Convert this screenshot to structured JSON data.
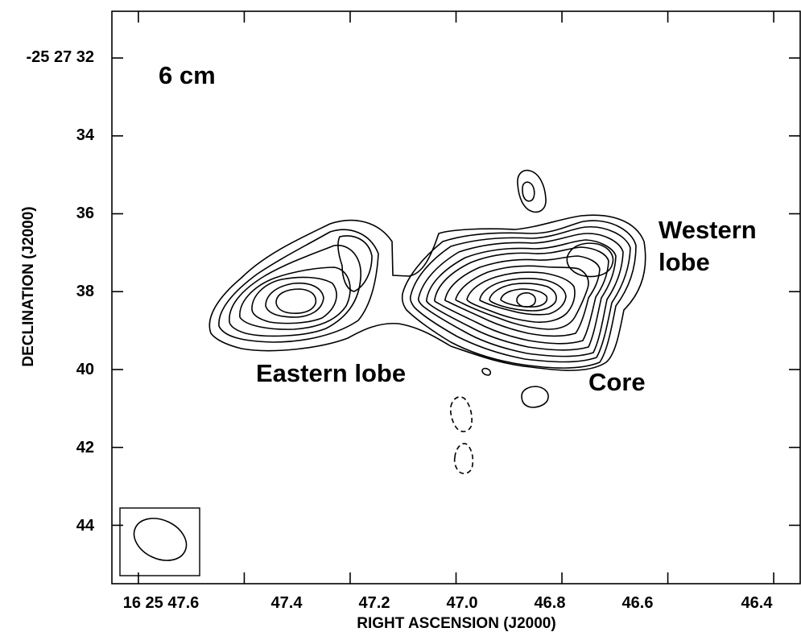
{
  "chart_data": {
    "type": "contour",
    "band_label": "6 cm",
    "xlabel": "RIGHT ASCENSION (J2000)",
    "ylabel": "DECLINATION (J2000)",
    "x_axis": {
      "unit": "seconds of RA (16h 25m)",
      "range": [
        47.65,
        46.35
      ],
      "ticks": [
        {
          "value": 47.6,
          "label": "16 25 47.6"
        },
        {
          "value": 47.4,
          "label": "47.4"
        },
        {
          "value": 47.2,
          "label": "47.2"
        },
        {
          "value": 47.0,
          "label": "47.0"
        },
        {
          "value": 46.8,
          "label": "46.8"
        },
        {
          "value": 46.6,
          "label": "46.6"
        },
        {
          "value": 46.4,
          "label": "46.4"
        }
      ]
    },
    "y_axis": {
      "unit": "arcseconds (-25 27)",
      "range": [
        30.8,
        45.5
      ],
      "ticks": [
        {
          "value": 32,
          "label": "-25 27 32"
        },
        {
          "value": 34,
          "label": "34"
        },
        {
          "value": 36,
          "label": "36"
        },
        {
          "value": 38,
          "label": "38"
        },
        {
          "value": 40,
          "label": "40"
        },
        {
          "value": 42,
          "label": "42"
        },
        {
          "value": 44,
          "label": "44"
        }
      ]
    },
    "annotations": [
      {
        "text": "Western",
        "ra": 46.63,
        "dec": 37.0
      },
      {
        "text": "lobe",
        "ra": 46.63,
        "dec": 37.8
      },
      {
        "text": "Eastern lobe",
        "ra": 47.37,
        "dec": 40.3
      },
      {
        "text": "Core",
        "ra": 46.79,
        "dec": 40.6
      }
    ],
    "components": [
      {
        "name": "Eastern lobe",
        "peak_ra": 47.31,
        "peak_dec": 38.3
      },
      {
        "name": "Core",
        "peak_ra": 46.88,
        "peak_dec": 38.3
      },
      {
        "name": "Western lobe",
        "peak_ra": 46.76,
        "peak_dec": 37.2
      }
    ],
    "beam": {
      "ra": 47.575,
      "dec": 44.4,
      "major_arcsec": 1.5,
      "minor_arcsec": 1.0,
      "pa_deg": 25
    },
    "grid": false
  }
}
